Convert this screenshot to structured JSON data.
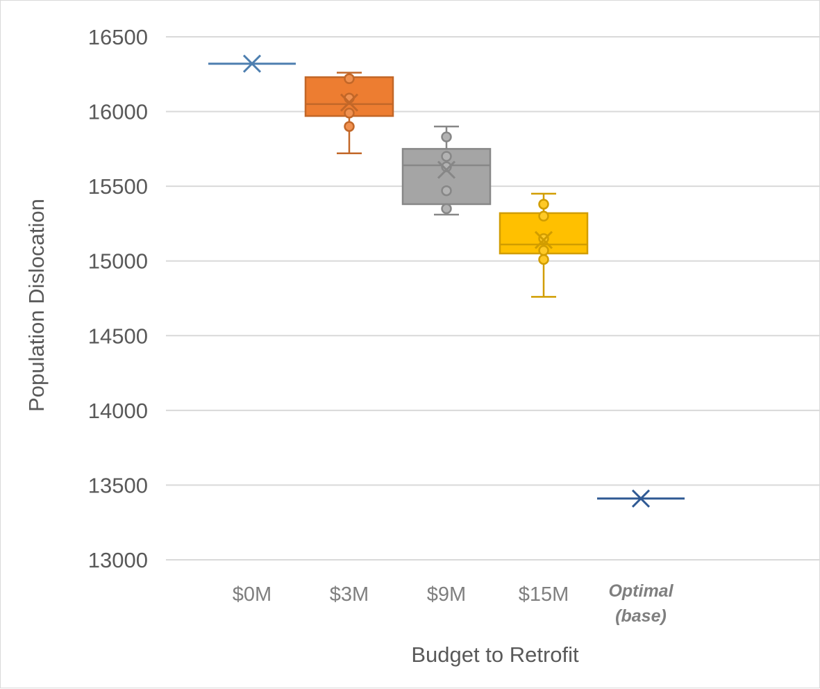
{
  "chart_data": {
    "type": "box",
    "title": "",
    "xlabel": "Budget to Retrofit",
    "ylabel": "Population Dislocation",
    "ylim": [
      13000,
      16500
    ],
    "yticks": [
      13000,
      13500,
      14000,
      14500,
      15000,
      15500,
      16000,
      16500
    ],
    "grid": true,
    "legend": "none",
    "categories": [
      {
        "label": "$0M",
        "style": "normal"
      },
      {
        "label": "$3M",
        "style": "normal"
      },
      {
        "label": "$9M",
        "style": "normal"
      },
      {
        "label": "$15M",
        "style": "normal"
      },
      {
        "label": "Optimal (base)",
        "lines": [
          "Optimal",
          "(base)"
        ],
        "style": "bold-italic"
      }
    ],
    "series": [
      {
        "category": "$0M",
        "color": "#4e7fb0",
        "min": 16320,
        "q1": 16320,
        "median": 16320,
        "q3": 16320,
        "max": 16320,
        "mean": 16320,
        "points": []
      },
      {
        "category": "$3M",
        "color": "#ed7d31",
        "min": 15720,
        "q1": 15970,
        "median": 16050,
        "q3": 16230,
        "max": 16260,
        "mean": 16060,
        "points": [
          15900,
          15990,
          16090,
          16220
        ]
      },
      {
        "category": "$9M",
        "color": "#a5a5a5",
        "min": 15310,
        "q1": 15380,
        "median": 15640,
        "q3": 15750,
        "max": 15900,
        "mean": 15610,
        "points": [
          15350,
          15470,
          15630,
          15700,
          15830
        ]
      },
      {
        "category": "$15M",
        "color": "#ffc000",
        "min": 14760,
        "q1": 15050,
        "median": 15110,
        "q3": 15320,
        "max": 15450,
        "mean": 15140,
        "points": [
          15010,
          15070,
          15150,
          15300,
          15380
        ]
      },
      {
        "category": "Optimal (base)",
        "color": "#305a94",
        "min": 13410,
        "q1": 13410,
        "median": 13410,
        "q3": 13410,
        "max": 13410,
        "mean": 13410,
        "points": []
      }
    ]
  }
}
